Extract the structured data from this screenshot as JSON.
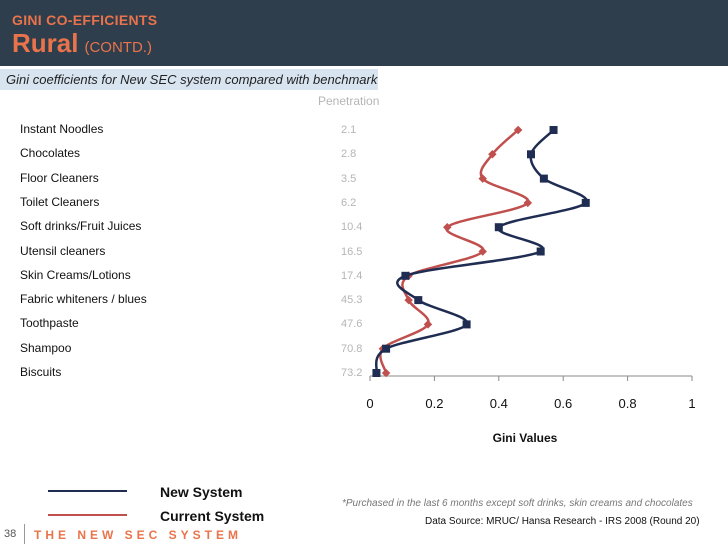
{
  "header": {
    "kicker": "GINI CO-EFFICIENTS",
    "title": "Rural",
    "title_suffix": "(CONTD.)"
  },
  "subtitle": "Gini coefficients for New SEC system compared with benchmark",
  "penetration_label": "Penetration",
  "chart_data": {
    "type": "line",
    "orientation": "horizontal",
    "xlabel": "Gini Values",
    "xlim": [
      0,
      1
    ],
    "xticks": [
      "0",
      "0.2",
      "0.4",
      "0.6",
      "0.8",
      "1"
    ],
    "categories": [
      "Instant Noodles",
      "Chocolates",
      "Floor Cleaners",
      "Toilet Cleaners",
      "Soft drinks/Fruit Juices",
      "Utensil cleaners",
      "Skin Creams/Lotions",
      "Fabric whiteners / blues",
      "Toothpaste",
      "Shampoo",
      "Biscuits"
    ],
    "penetration": [
      "2.1",
      "2.8",
      "3.5",
      "6.2",
      "10.4",
      "16.5",
      "17.4",
      "45.3",
      "47.6",
      "70.8",
      "73.2"
    ],
    "series": [
      {
        "name": "New System",
        "color": "#1f2d52",
        "marker": "square",
        "values": [
          0.57,
          0.5,
          0.54,
          0.67,
          0.4,
          0.53,
          0.11,
          0.15,
          0.3,
          0.05,
          0.02
        ]
      },
      {
        "name": "Current System",
        "color": "#c0504d",
        "marker": "diamond",
        "values": [
          0.46,
          0.38,
          0.35,
          0.49,
          0.24,
          0.35,
          0.12,
          0.12,
          0.18,
          0.04,
          0.05
        ]
      }
    ]
  },
  "legend": {
    "new_system": "New System",
    "current_system": "Current System"
  },
  "footnote": "*Purchased in the last 6 months except  soft drinks, skin creams and chocolates",
  "source": "Data Source: MRUC/ Hansa Research - IRS 2008 (Round 20)",
  "footer": {
    "page_number": "38",
    "brand": "THE NEW SEC SYSTEM"
  },
  "colors": {
    "header_bg": "#2f3e4d",
    "accent": "#e9734a",
    "subtitle_bg": "#d8e5f1"
  }
}
